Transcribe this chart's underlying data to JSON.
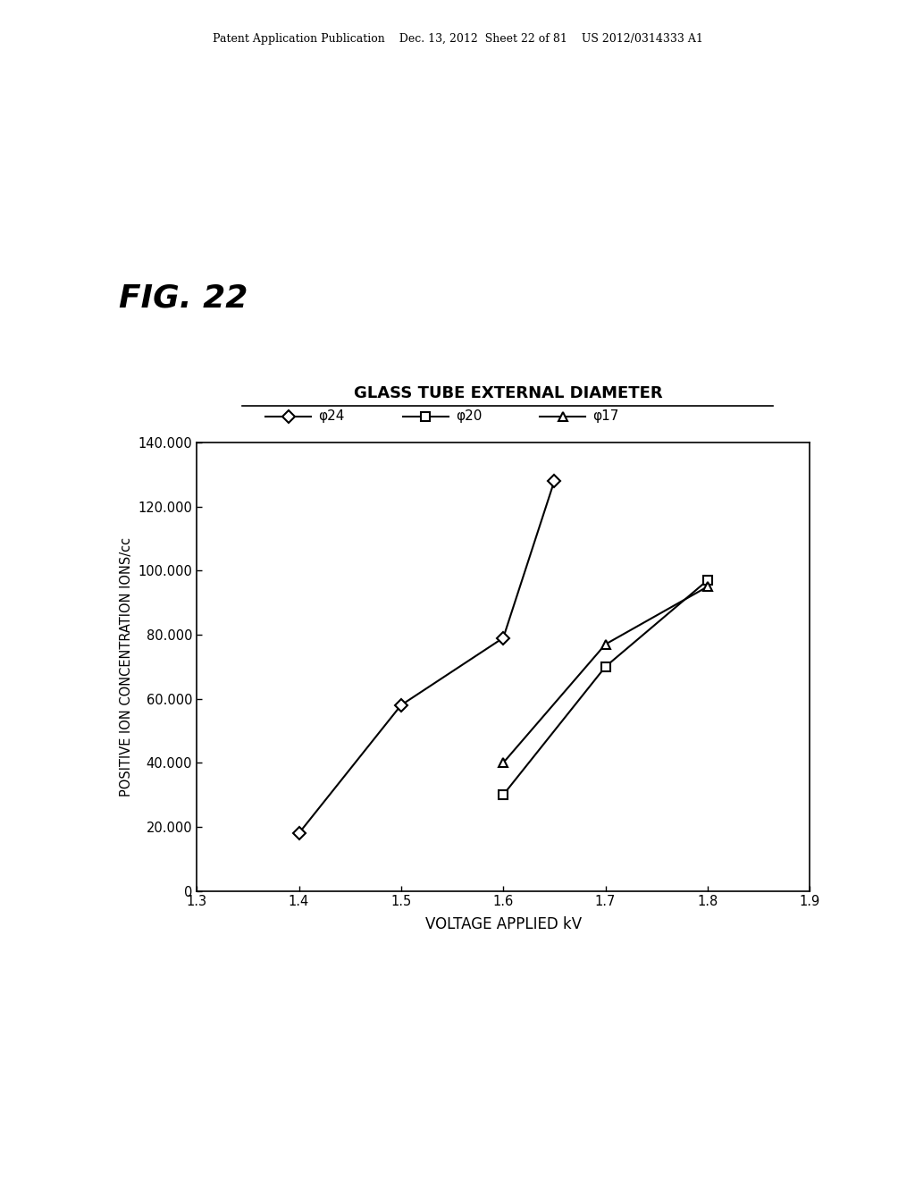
{
  "title": "GLASS TUBE EXTERNAL DIAMETER",
  "xlabel": "VOLTAGE APPLIED kV",
  "ylabel": "POSITIVE ION CONCENTRATION IONS/cc",
  "xlim": [
    1.3,
    1.9
  ],
  "ylim": [
    0,
    140000
  ],
  "xticks": [
    1.3,
    1.4,
    1.5,
    1.6,
    1.7,
    1.8,
    1.9
  ],
  "yticks": [
    0,
    20000,
    40000,
    60000,
    80000,
    100000,
    120000,
    140000
  ],
  "ytick_labels": [
    "0",
    "20.000",
    "40.000",
    "60.000",
    "80.000",
    "100.000",
    "120.000",
    "140.000"
  ],
  "series": [
    {
      "label": "φ24",
      "x": [
        1.4,
        1.5,
        1.6,
        1.65
      ],
      "y": [
        18000,
        58000,
        79000,
        128000
      ],
      "marker": "D",
      "color": "black"
    },
    {
      "label": "φ20",
      "x": [
        1.6,
        1.7,
        1.8
      ],
      "y": [
        30000,
        70000,
        97000
      ],
      "marker": "s",
      "color": "black"
    },
    {
      "label": "φ17",
      "x": [
        1.6,
        1.7,
        1.8
      ],
      "y": [
        40000,
        77000,
        95000
      ],
      "marker": "^",
      "color": "black"
    }
  ],
  "header_text": "Patent Application Publication    Dec. 13, 2012  Sheet 22 of 81    US 2012/0314333 A1",
  "fig_label": "FIG. 22",
  "background_color": "#ffffff",
  "font_color": "#000000",
  "legend_items": [
    {
      "marker": "D",
      "label": "φ24"
    },
    {
      "marker": "s",
      "label": "φ20"
    },
    {
      "marker": "^",
      "label": "φ17"
    }
  ]
}
